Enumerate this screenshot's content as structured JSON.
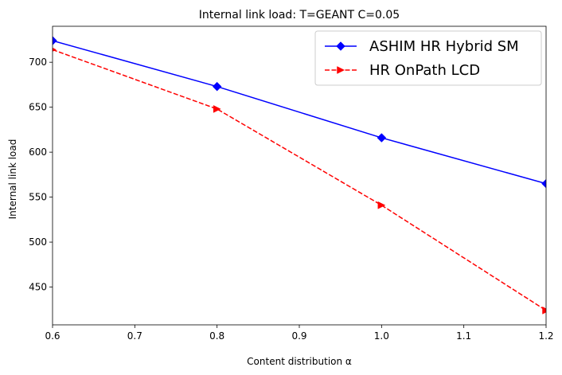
{
  "chart_data": {
    "type": "line",
    "title": "Internal link load: T=GEANT C=0.05",
    "xlabel": "Content distribution α",
    "ylabel": "Internal link load",
    "xlim": [
      0.6,
      1.2
    ],
    "ylim": [
      408,
      740
    ],
    "xticks": [
      0.6,
      0.7,
      0.8,
      0.9,
      1.0,
      1.1,
      1.2
    ],
    "xtick_labels": [
      "0.6",
      "0.7",
      "0.8",
      "0.9",
      "1.0",
      "1.1",
      "1.2"
    ],
    "yticks": [
      450,
      500,
      550,
      600,
      650,
      700
    ],
    "ytick_labels": [
      "450",
      "500",
      "550",
      "600",
      "650",
      "700"
    ],
    "grid": false,
    "legend_position": "top-right",
    "x": [
      0.6,
      0.8,
      1.0,
      1.2
    ],
    "series": [
      {
        "name": "ASHIM HR Hybrid SM",
        "values": [
          724,
          673,
          616,
          565
        ],
        "color": "#0000ff",
        "linestyle": "solid",
        "marker": "diamond"
      },
      {
        "name": "HR OnPath LCD",
        "values": [
          714,
          648,
          541,
          424
        ],
        "color": "#ff0000",
        "linestyle": "dashed",
        "marker": "triangle-right"
      }
    ]
  }
}
